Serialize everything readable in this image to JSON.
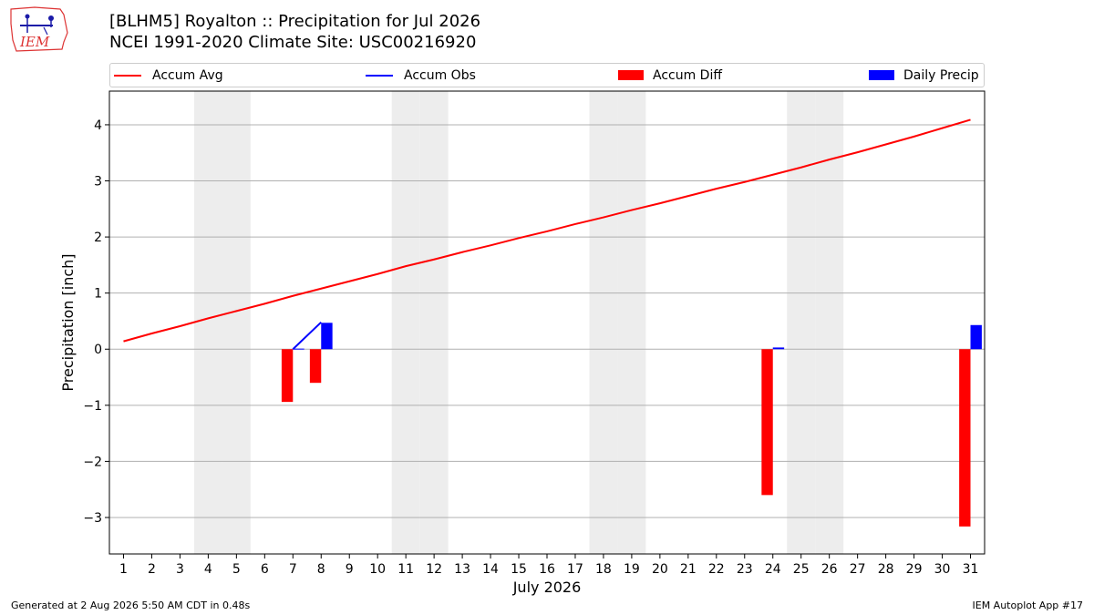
{
  "header": {
    "title_line1": "[BLHM5] Royalton :: Precipitation for Jul 2026",
    "title_line2": "NCEI 1991-2020 Climate Site: USC00216920",
    "logo_text": "IEM"
  },
  "colors": {
    "avg": "#ff0000",
    "obs": "#0000ff",
    "diff": "#ff0000",
    "daily": "#0000ff",
    "weekend_shade": "#ededed",
    "grid": "#b0b0b0"
  },
  "footer": {
    "generated": "Generated at 2 Aug 2026 5:50 AM CDT in 0.48s",
    "app": "IEM Autoplot App #17"
  },
  "chart_data": {
    "type": "bar",
    "xlabel": "July 2026",
    "ylabel": "Precipitation [inch]",
    "xlim": [
      0.5,
      31.5
    ],
    "ylim": [
      -3.65,
      4.6
    ],
    "yticks": [
      -3,
      -2,
      -1,
      0,
      1,
      2,
      3,
      4
    ],
    "ytick_labels": [
      "−3",
      "−2",
      "−1",
      "0",
      "1",
      "2",
      "3",
      "4"
    ],
    "categories": [
      "1",
      "2",
      "3",
      "4",
      "5",
      "6",
      "7",
      "8",
      "9",
      "10",
      "11",
      "12",
      "13",
      "14",
      "15",
      "16",
      "17",
      "18",
      "19",
      "20",
      "21",
      "22",
      "23",
      "24",
      "25",
      "26",
      "27",
      "28",
      "29",
      "30",
      "31"
    ],
    "grid": "horizontal",
    "weekend_days": [
      4,
      5,
      11,
      12,
      18,
      19,
      25,
      26
    ],
    "legend": {
      "placement": "top",
      "entries": [
        {
          "label": "Accum Avg",
          "kind": "line",
          "color": "#ff0000"
        },
        {
          "label": "Accum Obs",
          "kind": "line",
          "color": "#0000ff"
        },
        {
          "label": "Accum Diff",
          "kind": "bar",
          "color": "#ff0000"
        },
        {
          "label": "Daily Precip",
          "kind": "bar",
          "color": "#0000ff"
        }
      ]
    },
    "series": [
      {
        "name": "Accum Avg",
        "type": "line",
        "x": [
          1,
          2,
          3,
          4,
          5,
          6,
          7,
          8,
          9,
          10,
          11,
          12,
          13,
          14,
          15,
          16,
          17,
          18,
          19,
          20,
          21,
          22,
          23,
          24,
          25,
          26,
          27,
          28,
          29,
          30,
          31
        ],
        "values": [
          0.14,
          0.28,
          0.41,
          0.55,
          0.68,
          0.81,
          0.95,
          1.08,
          1.21,
          1.34,
          1.48,
          1.6,
          1.73,
          1.85,
          1.98,
          2.1,
          2.23,
          2.35,
          2.48,
          2.6,
          2.73,
          2.86,
          2.98,
          3.11,
          3.24,
          3.38,
          3.51,
          3.65,
          3.79,
          3.94,
          4.09
        ]
      },
      {
        "name": "Accum Obs",
        "type": "line",
        "x": [
          7,
          8
        ],
        "values": [
          0.0,
          0.48
        ]
      },
      {
        "name": "Accum Diff",
        "type": "bar",
        "x": [
          7,
          8,
          24,
          31
        ],
        "values": [
          -0.94,
          -0.6,
          -2.6,
          -3.16
        ]
      },
      {
        "name": "Daily Precip",
        "type": "bar",
        "x": [
          7,
          8,
          24,
          31
        ],
        "values": [
          0.01,
          0.47,
          0.03,
          0.43
        ]
      }
    ]
  }
}
